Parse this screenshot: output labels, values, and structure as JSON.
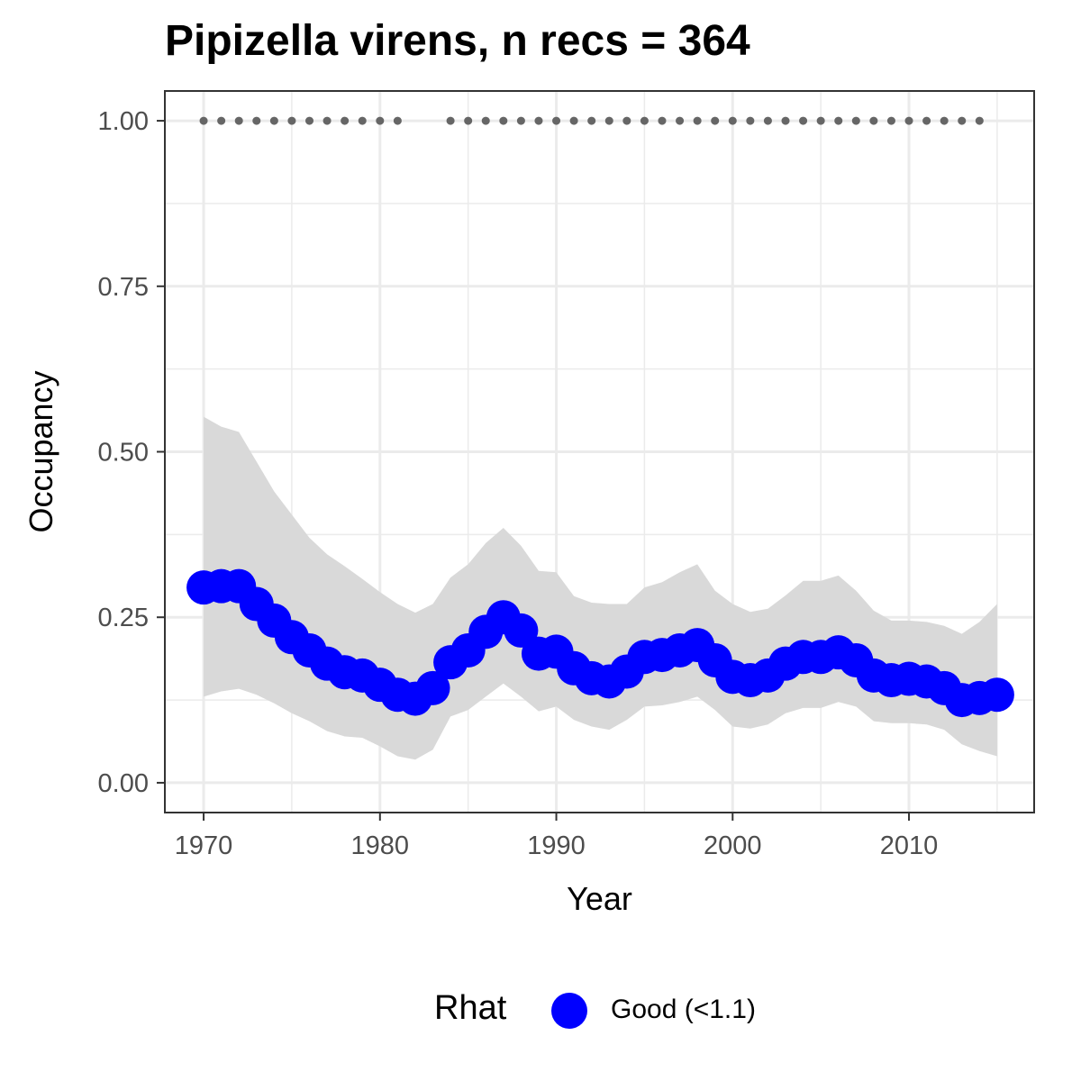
{
  "chart_data": {
    "type": "line",
    "title": "Pipizella virens, n recs = 364",
    "xlabel": "Year",
    "ylabel": "Occupancy",
    "xlim": [
      1967.8,
      1917.1
    ],
    "xlim_note": "",
    "ylim": [
      -0.045,
      1.045
    ],
    "x_ticks": [
      1970,
      1980,
      1990,
      2000,
      2010
    ],
    "x_tick_labels": [
      "1970",
      "1980",
      "1990",
      "2000",
      "2010"
    ],
    "y_ticks": [
      0,
      0.25,
      0.5,
      0.75,
      1.0
    ],
    "y_tick_labels": [
      "0.00",
      "0.25",
      "0.50",
      "0.75",
      "1.00"
    ],
    "grid": true,
    "years": [
      1970,
      1971,
      1972,
      1973,
      1974,
      1975,
      1976,
      1977,
      1978,
      1979,
      1980,
      1981,
      1982,
      1983,
      1984,
      1985,
      1986,
      1987,
      1988,
      1989,
      1990,
      1991,
      1992,
      1993,
      1994,
      1995,
      1996,
      1997,
      1998,
      1999,
      2000,
      2001,
      2002,
      2003,
      2004,
      2005,
      2006,
      2007,
      2008,
      2009,
      2010,
      2011,
      2012,
      2013,
      2014,
      2015
    ],
    "series": [
      {
        "name": "Good (<1.1)",
        "color": "#0000ff",
        "values": [
          0.295,
          0.297,
          0.297,
          0.27,
          0.245,
          0.22,
          0.2,
          0.18,
          0.167,
          0.162,
          0.148,
          0.133,
          0.127,
          0.143,
          0.182,
          0.2,
          0.228,
          0.25,
          0.23,
          0.195,
          0.198,
          0.173,
          0.158,
          0.153,
          0.168,
          0.19,
          0.193,
          0.2,
          0.208,
          0.185,
          0.16,
          0.155,
          0.162,
          0.18,
          0.19,
          0.19,
          0.197,
          0.185,
          0.162,
          0.155,
          0.157,
          0.153,
          0.143,
          0.125,
          0.128,
          0.133
        ]
      }
    ],
    "ribbon": {
      "color": "#d9d9d9",
      "lower": [
        0.13,
        0.138,
        0.142,
        0.133,
        0.12,
        0.105,
        0.093,
        0.078,
        0.07,
        0.068,
        0.055,
        0.04,
        0.035,
        0.05,
        0.1,
        0.11,
        0.13,
        0.15,
        0.13,
        0.108,
        0.115,
        0.095,
        0.085,
        0.08,
        0.095,
        0.115,
        0.117,
        0.122,
        0.13,
        0.11,
        0.085,
        0.082,
        0.088,
        0.105,
        0.113,
        0.113,
        0.122,
        0.115,
        0.093,
        0.09,
        0.09,
        0.088,
        0.08,
        0.058,
        0.048,
        0.04
      ],
      "upper": [
        0.553,
        0.538,
        0.53,
        0.485,
        0.44,
        0.405,
        0.37,
        0.345,
        0.327,
        0.308,
        0.288,
        0.27,
        0.257,
        0.27,
        0.31,
        0.33,
        0.362,
        0.385,
        0.358,
        0.32,
        0.318,
        0.282,
        0.272,
        0.27,
        0.27,
        0.295,
        0.303,
        0.318,
        0.33,
        0.29,
        0.27,
        0.258,
        0.263,
        0.283,
        0.305,
        0.305,
        0.313,
        0.29,
        0.26,
        0.245,
        0.245,
        0.243,
        0.237,
        0.225,
        0.243,
        0.27
      ]
    },
    "data_marks": {
      "y": 1.0,
      "color": "#666666",
      "years": [
        1970,
        1971,
        1972,
        1973,
        1974,
        1975,
        1976,
        1977,
        1978,
        1979,
        1980,
        1981,
        1984,
        1985,
        1986,
        1987,
        1988,
        1989,
        1990,
        1991,
        1992,
        1993,
        1994,
        1995,
        1996,
        1997,
        1998,
        1999,
        2000,
        2001,
        2002,
        2003,
        2004,
        2005,
        2006,
        2007,
        2008,
        2009,
        2010,
        2011,
        2012,
        2013,
        2014
      ]
    },
    "legend": {
      "title": "Rhat",
      "position": "bottom",
      "entries": [
        {
          "label": "Good (<1.1)",
          "color": "#0000ff"
        }
      ]
    }
  }
}
